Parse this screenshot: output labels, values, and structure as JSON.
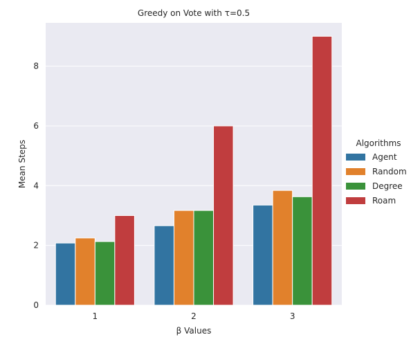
{
  "chart_data": {
    "type": "bar",
    "title": "Greedy on Vote with τ=0.5",
    "xlabel": "β Values",
    "ylabel": "Mean Steps",
    "categories": [
      "1",
      "2",
      "3"
    ],
    "ylim": [
      0,
      9.45
    ],
    "yticks": [
      0,
      2,
      4,
      6,
      8
    ],
    "grid": true,
    "legend": {
      "title": "Algorithms",
      "position": "right"
    },
    "series": [
      {
        "name": "Agent",
        "color": "#3274a1",
        "values": [
          2.08,
          2.66,
          3.35
        ]
      },
      {
        "name": "Random",
        "color": "#e1812c",
        "values": [
          2.25,
          3.17,
          3.84
        ]
      },
      {
        "name": "Degree",
        "color": "#3a923a",
        "values": [
          2.13,
          3.17,
          3.63
        ]
      },
      {
        "name": "Roam",
        "color": "#c03d3e",
        "values": [
          3.0,
          6.0,
          9.0
        ]
      }
    ],
    "colors": {
      "plot_background": "#eaeaf2",
      "grid": "#ffffff",
      "text": "#262626"
    }
  }
}
